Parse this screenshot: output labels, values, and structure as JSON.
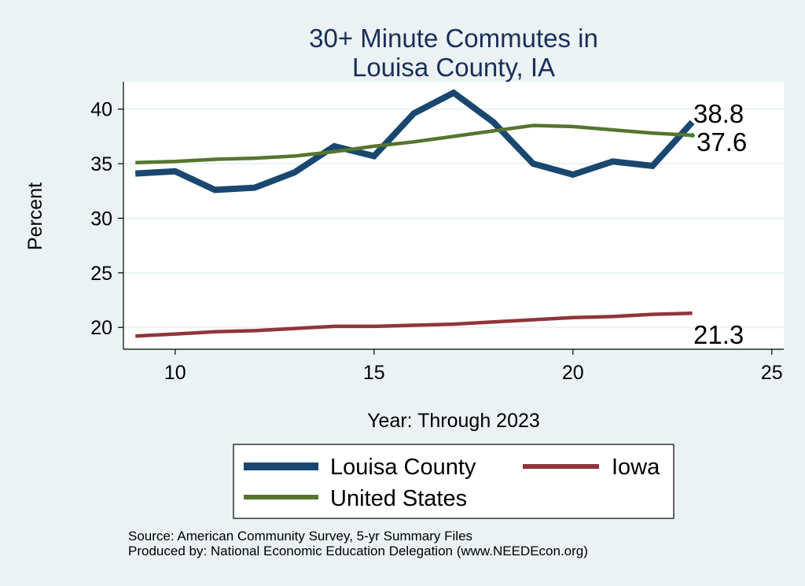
{
  "colors": {
    "background": "#eaf2f3",
    "plot_background": "#ffffff",
    "gridline": "#eaf2f3",
    "title": "#1a2e5a",
    "louisa": "#1a476f",
    "iowa": "#90353b",
    "us": "#55752f",
    "us_end_dot": "#2e8b2e"
  },
  "chart_data": {
    "type": "line",
    "title": "30+ Minute Commutes in\nLouisa County, IA",
    "title_lines": [
      "30+ Minute Commutes in",
      "Louisa County, IA"
    ],
    "xlabel": "Year: Through 2023",
    "ylabel": "Percent",
    "xlim": [
      8.7,
      25.3
    ],
    "ylim": [
      18.0,
      42.5
    ],
    "xticks": [
      10,
      15,
      20,
      25
    ],
    "yticks": [
      20,
      25,
      30,
      35,
      40
    ],
    "grid": true,
    "legend_position": "bottom",
    "x": [
      9,
      10,
      11,
      12,
      13,
      14,
      15,
      16,
      17,
      18,
      19,
      20,
      21,
      22,
      23
    ],
    "series": [
      {
        "name": "Louisa County",
        "values": [
          34.1,
          34.3,
          32.6,
          32.8,
          34.2,
          36.6,
          35.7,
          39.6,
          41.5,
          38.8,
          35.0,
          34.0,
          35.2,
          34.8,
          38.8
        ],
        "end_label": "38.8",
        "color_key": "louisa"
      },
      {
        "name": "Iowa",
        "values": [
          19.2,
          19.4,
          19.6,
          19.7,
          19.9,
          20.1,
          20.1,
          20.2,
          20.3,
          20.5,
          20.7,
          20.9,
          21.0,
          21.2,
          21.3
        ],
        "end_label": "21.3",
        "color_key": "iowa"
      },
      {
        "name": "United States",
        "values": [
          35.1,
          35.2,
          35.4,
          35.5,
          35.7,
          36.1,
          36.6,
          37.0,
          37.5,
          38.0,
          38.5,
          38.4,
          38.1,
          37.8,
          37.6
        ],
        "end_label": "37.6",
        "color_key": "us"
      }
    ]
  },
  "notes": {
    "source": "Source: American Community Survey, 5-yr Summary Files",
    "produced": "Produced by: National Economic Education Delegation (www.NEEDEcon.org)"
  }
}
